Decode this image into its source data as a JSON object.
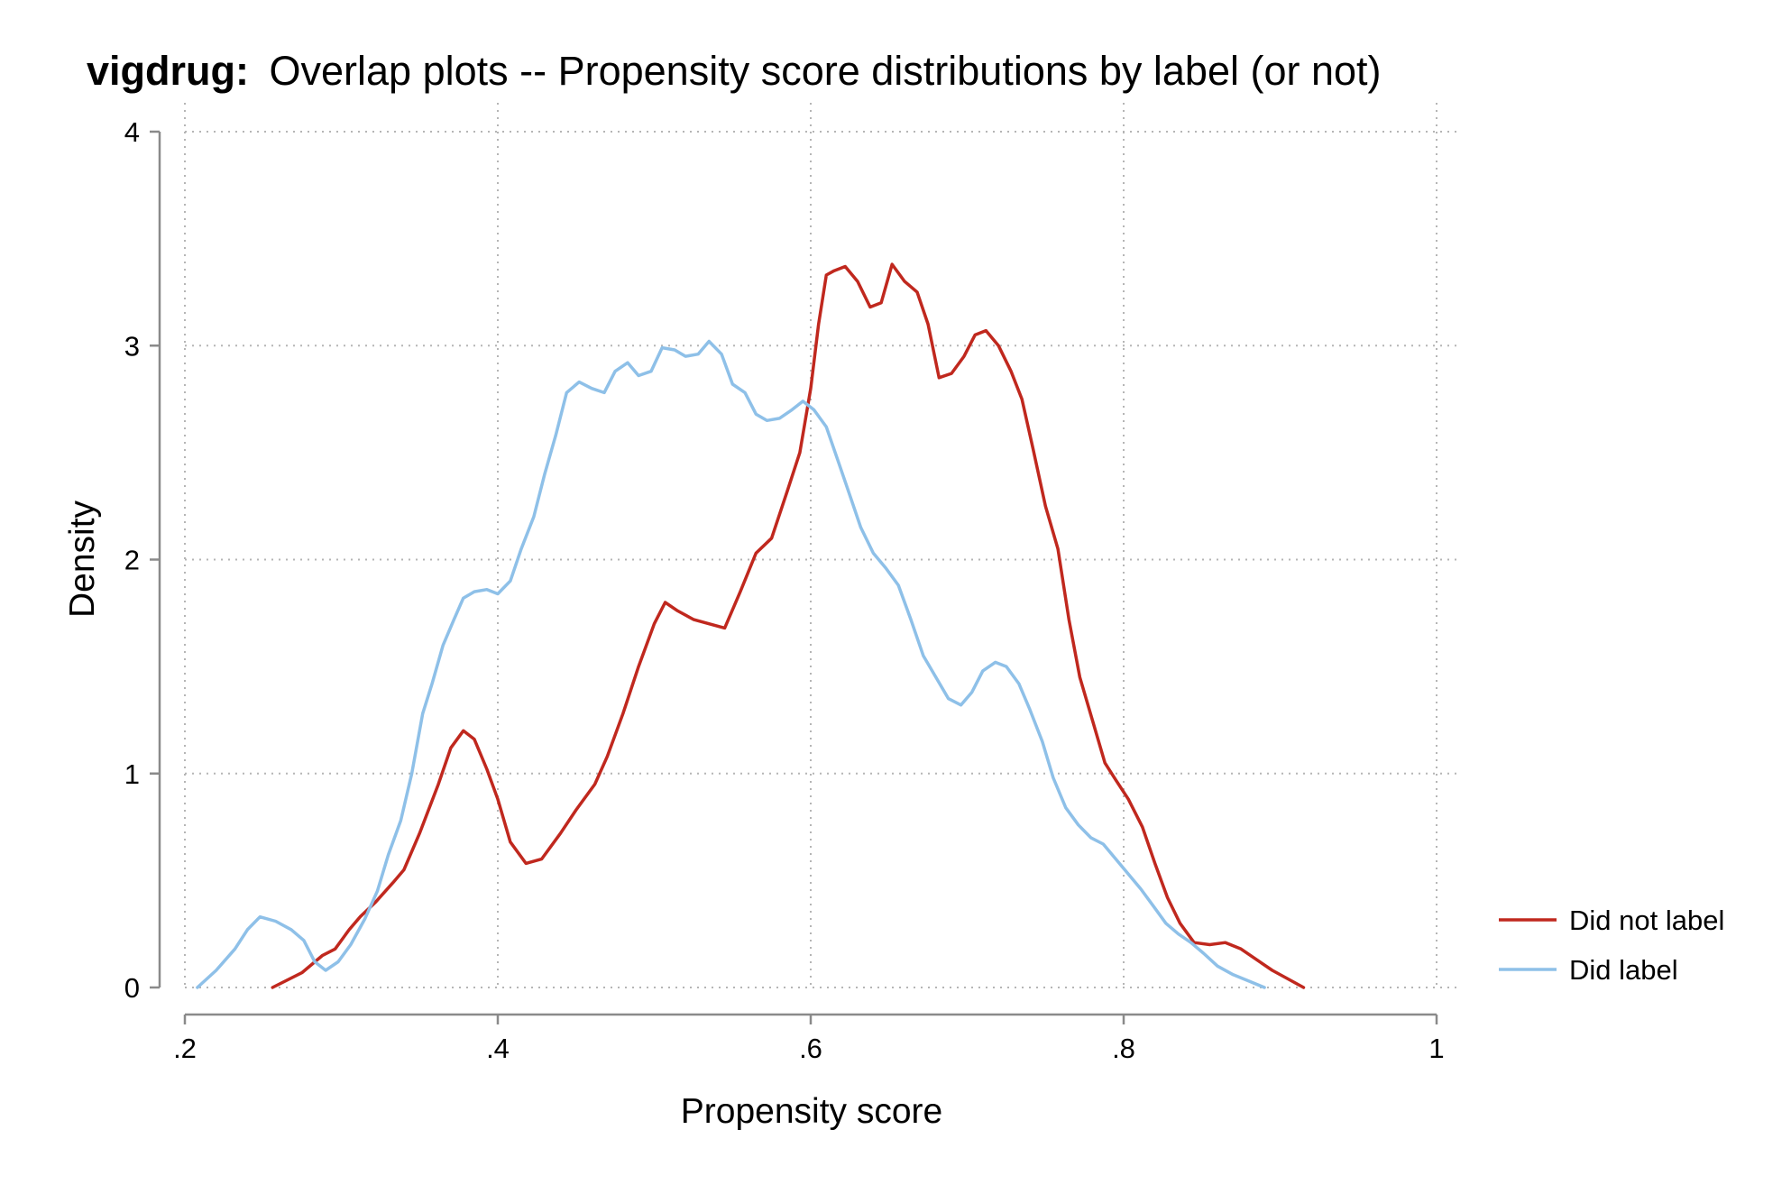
{
  "chart_data": {
    "type": "line",
    "title_prefix": "vigdrug:",
    "title": "Overlap plots -- Propensity score distributions by label (or not)",
    "xlabel": "Propensity score",
    "ylabel": "Density",
    "xlim": [
      0.2,
      1.0
    ],
    "ylim": [
      0,
      4
    ],
    "xticks": [
      0.2,
      0.4,
      0.6,
      0.8,
      1.0
    ],
    "xtick_labels": [
      ".2",
      ".4",
      ".6",
      ".8",
      "1"
    ],
    "yticks": [
      0,
      1,
      2,
      3,
      4
    ],
    "ytick_labels": [
      "0",
      "1",
      "2",
      "3",
      "4"
    ],
    "grid": true,
    "legend_position": "right",
    "series": [
      {
        "name": "Did not label",
        "color": "#c0281e",
        "points": [
          [
            0.256,
            0.0
          ],
          [
            0.275,
            0.07
          ],
          [
            0.288,
            0.15
          ],
          [
            0.296,
            0.18
          ],
          [
            0.305,
            0.27
          ],
          [
            0.312,
            0.33
          ],
          [
            0.322,
            0.4
          ],
          [
            0.333,
            0.49
          ],
          [
            0.34,
            0.55
          ],
          [
            0.35,
            0.72
          ],
          [
            0.362,
            0.95
          ],
          [
            0.37,
            1.12
          ],
          [
            0.378,
            1.2
          ],
          [
            0.385,
            1.16
          ],
          [
            0.393,
            1.02
          ],
          [
            0.4,
            0.88
          ],
          [
            0.408,
            0.68
          ],
          [
            0.418,
            0.58
          ],
          [
            0.428,
            0.6
          ],
          [
            0.44,
            0.72
          ],
          [
            0.45,
            0.83
          ],
          [
            0.462,
            0.95
          ],
          [
            0.47,
            1.08
          ],
          [
            0.48,
            1.28
          ],
          [
            0.49,
            1.5
          ],
          [
            0.5,
            1.7
          ],
          [
            0.507,
            1.8
          ],
          [
            0.515,
            1.76
          ],
          [
            0.525,
            1.72
          ],
          [
            0.535,
            1.7
          ],
          [
            0.545,
            1.68
          ],
          [
            0.555,
            1.85
          ],
          [
            0.565,
            2.03
          ],
          [
            0.575,
            2.1
          ],
          [
            0.585,
            2.32
          ],
          [
            0.593,
            2.5
          ],
          [
            0.6,
            2.8
          ],
          [
            0.605,
            3.1
          ],
          [
            0.61,
            3.33
          ],
          [
            0.615,
            3.35
          ],
          [
            0.622,
            3.37
          ],
          [
            0.63,
            3.3
          ],
          [
            0.638,
            3.18
          ],
          [
            0.645,
            3.2
          ],
          [
            0.652,
            3.38
          ],
          [
            0.66,
            3.3
          ],
          [
            0.668,
            3.25
          ],
          [
            0.675,
            3.1
          ],
          [
            0.682,
            2.85
          ],
          [
            0.69,
            2.87
          ],
          [
            0.698,
            2.95
          ],
          [
            0.705,
            3.05
          ],
          [
            0.712,
            3.07
          ],
          [
            0.72,
            3.0
          ],
          [
            0.728,
            2.88
          ],
          [
            0.735,
            2.75
          ],
          [
            0.742,
            2.52
          ],
          [
            0.75,
            2.25
          ],
          [
            0.758,
            2.05
          ],
          [
            0.765,
            1.72
          ],
          [
            0.772,
            1.45
          ],
          [
            0.78,
            1.25
          ],
          [
            0.788,
            1.05
          ],
          [
            0.795,
            0.97
          ],
          [
            0.803,
            0.88
          ],
          [
            0.812,
            0.75
          ],
          [
            0.82,
            0.58
          ],
          [
            0.828,
            0.42
          ],
          [
            0.836,
            0.3
          ],
          [
            0.845,
            0.21
          ],
          [
            0.855,
            0.2
          ],
          [
            0.865,
            0.21
          ],
          [
            0.875,
            0.18
          ],
          [
            0.885,
            0.13
          ],
          [
            0.895,
            0.08
          ],
          [
            0.905,
            0.04
          ],
          [
            0.915,
            0.0
          ]
        ]
      },
      {
        "name": "Did label",
        "color": "#8ec0e8",
        "points": [
          [
            0.208,
            0.0
          ],
          [
            0.22,
            0.08
          ],
          [
            0.232,
            0.18
          ],
          [
            0.24,
            0.27
          ],
          [
            0.248,
            0.33
          ],
          [
            0.258,
            0.31
          ],
          [
            0.268,
            0.27
          ],
          [
            0.276,
            0.22
          ],
          [
            0.283,
            0.12
          ],
          [
            0.29,
            0.08
          ],
          [
            0.298,
            0.12
          ],
          [
            0.306,
            0.2
          ],
          [
            0.315,
            0.32
          ],
          [
            0.323,
            0.45
          ],
          [
            0.33,
            0.62
          ],
          [
            0.338,
            0.78
          ],
          [
            0.345,
            1.0
          ],
          [
            0.352,
            1.28
          ],
          [
            0.358,
            1.42
          ],
          [
            0.365,
            1.6
          ],
          [
            0.372,
            1.72
          ],
          [
            0.378,
            1.82
          ],
          [
            0.385,
            1.85
          ],
          [
            0.393,
            1.86
          ],
          [
            0.4,
            1.84
          ],
          [
            0.408,
            1.9
          ],
          [
            0.415,
            2.05
          ],
          [
            0.423,
            2.2
          ],
          [
            0.43,
            2.4
          ],
          [
            0.437,
            2.58
          ],
          [
            0.444,
            2.78
          ],
          [
            0.452,
            2.83
          ],
          [
            0.46,
            2.8
          ],
          [
            0.468,
            2.78
          ],
          [
            0.475,
            2.88
          ],
          [
            0.483,
            2.92
          ],
          [
            0.49,
            2.86
          ],
          [
            0.498,
            2.88
          ],
          [
            0.505,
            2.99
          ],
          [
            0.513,
            2.98
          ],
          [
            0.52,
            2.95
          ],
          [
            0.528,
            2.96
          ],
          [
            0.535,
            3.02
          ],
          [
            0.543,
            2.96
          ],
          [
            0.55,
            2.82
          ],
          [
            0.558,
            2.78
          ],
          [
            0.565,
            2.68
          ],
          [
            0.572,
            2.65
          ],
          [
            0.58,
            2.66
          ],
          [
            0.588,
            2.7
          ],
          [
            0.595,
            2.74
          ],
          [
            0.602,
            2.7
          ],
          [
            0.61,
            2.62
          ],
          [
            0.618,
            2.45
          ],
          [
            0.625,
            2.3
          ],
          [
            0.632,
            2.15
          ],
          [
            0.64,
            2.03
          ],
          [
            0.648,
            1.96
          ],
          [
            0.656,
            1.88
          ],
          [
            0.664,
            1.72
          ],
          [
            0.672,
            1.55
          ],
          [
            0.68,
            1.45
          ],
          [
            0.688,
            1.35
          ],
          [
            0.696,
            1.32
          ],
          [
            0.703,
            1.38
          ],
          [
            0.71,
            1.48
          ],
          [
            0.718,
            1.52
          ],
          [
            0.725,
            1.5
          ],
          [
            0.733,
            1.42
          ],
          [
            0.74,
            1.3
          ],
          [
            0.748,
            1.15
          ],
          [
            0.755,
            0.98
          ],
          [
            0.763,
            0.84
          ],
          [
            0.771,
            0.76
          ],
          [
            0.779,
            0.7
          ],
          [
            0.787,
            0.67
          ],
          [
            0.795,
            0.6
          ],
          [
            0.803,
            0.53
          ],
          [
            0.811,
            0.46
          ],
          [
            0.819,
            0.38
          ],
          [
            0.827,
            0.3
          ],
          [
            0.835,
            0.25
          ],
          [
            0.843,
            0.21
          ],
          [
            0.851,
            0.16
          ],
          [
            0.86,
            0.1
          ],
          [
            0.87,
            0.06
          ],
          [
            0.88,
            0.03
          ],
          [
            0.89,
            0.0
          ]
        ]
      }
    ]
  }
}
